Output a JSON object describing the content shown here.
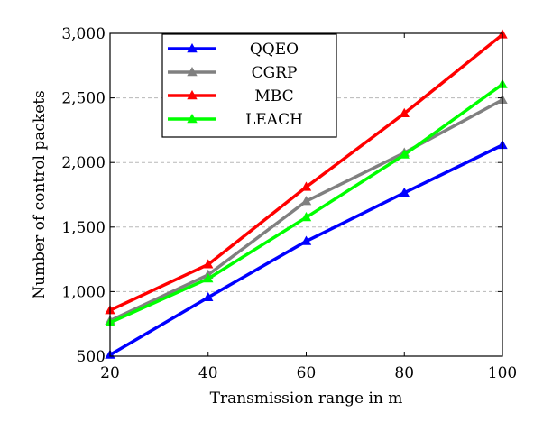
{
  "chart_data": {
    "type": "line",
    "title": "",
    "xlabel": "Transmission range in m",
    "ylabel": "Number of control packets",
    "x": [
      20,
      40,
      60,
      80,
      100
    ],
    "x_tick_labels": [
      "20",
      "40",
      "60",
      "80",
      "100"
    ],
    "xlim": [
      20,
      100
    ],
    "ylim": [
      500,
      3000
    ],
    "y_ticks": [
      500,
      1000,
      1500,
      2000,
      2500,
      3000
    ],
    "y_tick_labels": [
      "500",
      "1,000",
      "1,500",
      "2,000",
      "2,500",
      "3,000"
    ],
    "grid": "horizontal dashed",
    "legend_position": "top-left",
    "series": [
      {
        "name": "QQEO",
        "color": "#0000ff",
        "values": [
          510,
          955,
          1390,
          1765,
          2135
        ]
      },
      {
        "name": "CGRP",
        "color": "#808080",
        "values": [
          775,
          1130,
          1700,
          2075,
          2485
        ]
      },
      {
        "name": "MBC",
        "color": "#ff0000",
        "values": [
          855,
          1210,
          1810,
          2380,
          2990
        ]
      },
      {
        "name": "LEACH",
        "color": "#00ff00",
        "values": [
          760,
          1100,
          1575,
          2060,
          2605
        ]
      }
    ]
  }
}
